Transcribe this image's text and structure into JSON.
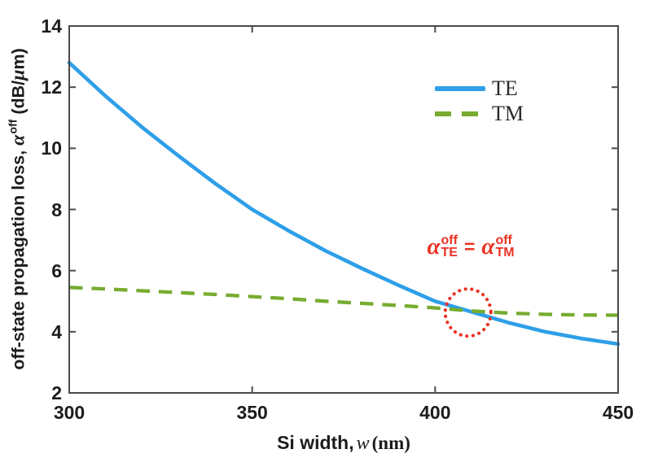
{
  "figure": {
    "background": "#ffffff",
    "axis_color": "#4a4a4a",
    "tick_label_color": "#1c1c1c"
  },
  "chart_data": {
    "type": "line",
    "title": "",
    "xlabel": "Si width, w (nm)",
    "ylabel": "off-state propagation loss, α off (dB/μm)",
    "xlim": [
      300,
      450
    ],
    "ylim": [
      2,
      14
    ],
    "xticks": [
      300,
      350,
      400,
      450
    ],
    "yticks": [
      2,
      4,
      6,
      8,
      10,
      12,
      14
    ],
    "grid": false,
    "legend_position": "upper right",
    "x": [
      300,
      310,
      320,
      330,
      340,
      350,
      360,
      370,
      380,
      390,
      400,
      410,
      420,
      430,
      440,
      450
    ],
    "series": [
      {
        "name": "TE",
        "color": "#2E9FE8",
        "style": "solid",
        "values": [
          12.8,
          11.7,
          10.68,
          9.74,
          8.84,
          8.0,
          7.3,
          6.65,
          6.07,
          5.52,
          5.0,
          4.65,
          4.3,
          4.0,
          3.78,
          3.6
        ]
      },
      {
        "name": "TM",
        "color": "#77AC30",
        "style": "dashed",
        "values": [
          5.45,
          5.4,
          5.34,
          5.28,
          5.22,
          5.15,
          5.08,
          5.0,
          4.93,
          4.86,
          4.78,
          4.68,
          4.61,
          4.57,
          4.55,
          4.54
        ]
      }
    ],
    "crossing_point": {
      "x_nm": 409,
      "y_db": 4.63
    }
  },
  "axes": {
    "xtick_labels": [
      "300",
      "350",
      "400",
      "450"
    ],
    "ytick_labels": [
      "2",
      "4",
      "6",
      "8",
      "10",
      "12",
      "14"
    ],
    "xlabel": {
      "prefix": "Si width,",
      "var": "w",
      "unit": "(nm)"
    },
    "ylabel": {
      "prefix": "off-state propagation loss,",
      "symbol": "α",
      "sup": "off",
      "unit_open": "(dB/",
      "unit_mu": "μ",
      "unit_close": "m)"
    }
  },
  "legend": {
    "entries": [
      {
        "label": "TE",
        "color": "#2E9FE8",
        "line_style": "solid"
      },
      {
        "label": "TM",
        "color": "#77AC30",
        "line_style": "dashed"
      }
    ]
  },
  "annotation": {
    "color": "#EB3223",
    "alpha": "α",
    "sup": "off",
    "sub_left": "TE",
    "equals": "=",
    "sub_right": "TM",
    "circle_x_nm": 409,
    "circle_y_db": 4.63
  }
}
